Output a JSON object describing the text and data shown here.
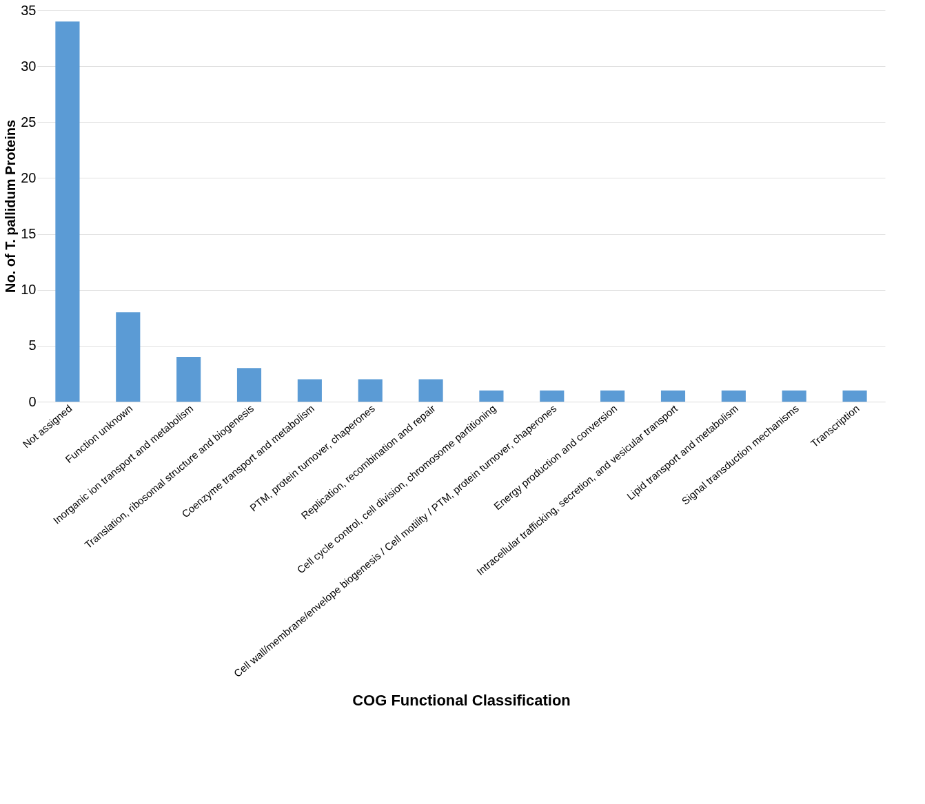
{
  "chart_data": {
    "type": "bar",
    "xlabel": "COG Functional Classification",
    "ylabel": "No. of T. pallidum Proteins",
    "categories": [
      "Not assigned",
      "Function unknown",
      "Inorganic ion transport and metabolism",
      "Translation, ribosomal structure and biogenesis",
      "Coenzyme transport and metabolism",
      "PTM, protein turnover, chaperones",
      "Replication, recombination and repair",
      "Cell cycle control, cell division, chromosome partitioning",
      "Cell wall/membrane/envelope biogenesis / Cell motility / PTM, protein turnover, chaperones",
      "Energy production and conversion",
      "Intracellular trafficking, secretion, and vesicular transport",
      "Lipid transport and metabolism",
      "Signal transduction mechanisms",
      "Transcription"
    ],
    "values": [
      34,
      8,
      4,
      3,
      2,
      2,
      2,
      1,
      1,
      1,
      1,
      1,
      1,
      1
    ],
    "color": "#5b9bd5",
    "ylim": [
      0,
      35
    ],
    "yticks": [
      0,
      5,
      10,
      15,
      20,
      25,
      30,
      35
    ],
    "grid": "y"
  }
}
